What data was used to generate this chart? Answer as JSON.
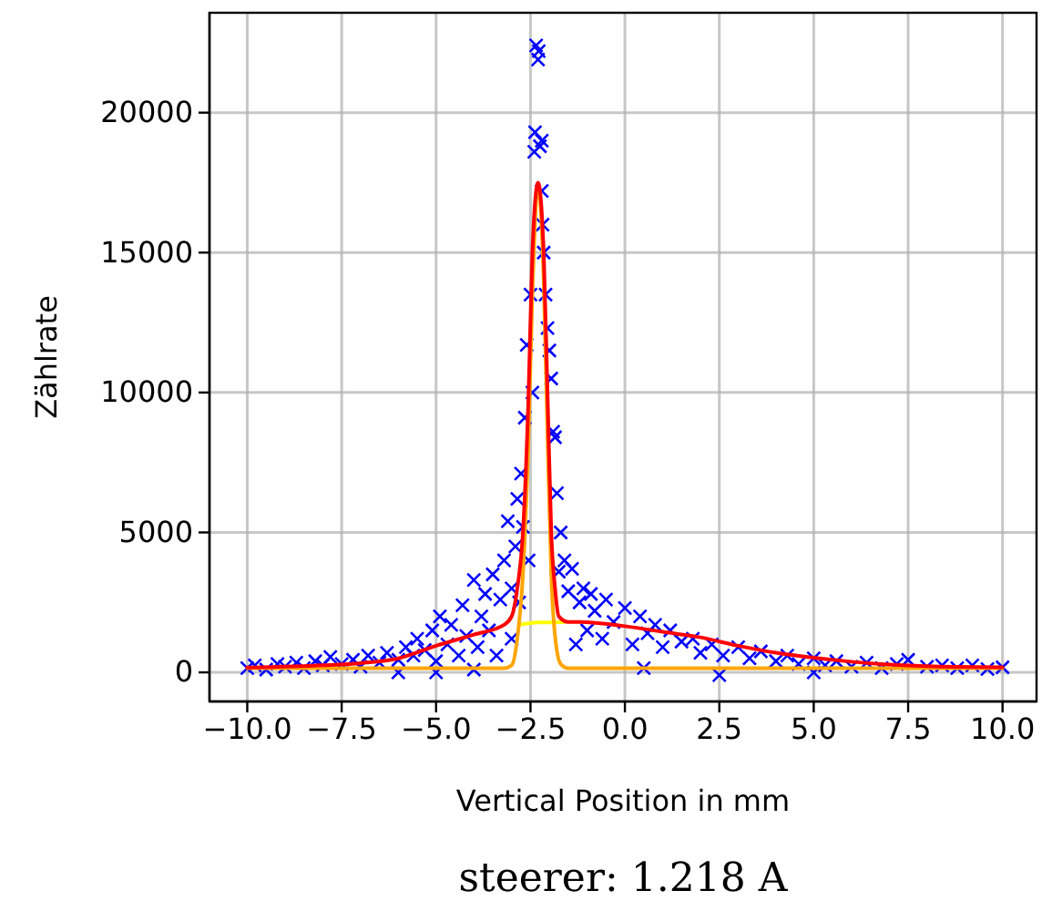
{
  "chart_data": {
    "type": "scatter",
    "title": "steerer: 1.218 A",
    "xlabel": "Vertical Position in mm",
    "ylabel": "Zählrate",
    "xlim": [
      -11,
      10.9
    ],
    "ylim": [
      -1040,
      23570
    ],
    "xticks": [
      {
        "value": -10,
        "label": "−10.0"
      },
      {
        "value": -7.5,
        "label": "−7.5"
      },
      {
        "value": -5,
        "label": "−5.0"
      },
      {
        "value": -2.5,
        "label": "−2.5"
      },
      {
        "value": 0,
        "label": "0.0"
      },
      {
        "value": 2.5,
        "label": "2.5"
      },
      {
        "value": 5,
        "label": "5.0"
      },
      {
        "value": 7.5,
        "label": "7.5"
      },
      {
        "value": 10,
        "label": "10.0"
      }
    ],
    "yticks": [
      0,
      5000,
      10000,
      15000,
      20000
    ],
    "grid": true,
    "marker": "cross",
    "series": [
      {
        "color": "#0000ff",
        "x": [
          -10,
          -9.8,
          -9.5,
          -9.2,
          -9,
          -8.7,
          -8.5,
          -8.2,
          -8,
          -7.8,
          -7.5,
          -7.2,
          -7,
          -6.8,
          -6.5,
          -6.3,
          -6,
          -6,
          -5.8,
          -5.6,
          -5.5,
          -5.3,
          -5.1,
          -5,
          -5,
          -4.9,
          -4.7,
          -4.6,
          -4.4,
          -4.3,
          -4.2,
          -4,
          -4,
          -3.9,
          -3.8,
          -3.7,
          -3.6,
          -3.5,
          -3.4,
          -3.3,
          -3.2,
          -3.1,
          -3,
          -3,
          -2.9,
          -2.85,
          -2.8,
          -2.75,
          -2.7,
          -2.65,
          -2.6,
          -2.55,
          -2.5,
          -2.45,
          -2.4,
          -2.38,
          -2.35,
          -2.3,
          -2.28,
          -2.25,
          -2.2,
          -2.2,
          -2.18,
          -2.15,
          -2.1,
          -2.05,
          -2,
          -1.95,
          -1.9,
          -1.85,
          -1.8,
          -1.75,
          -1.7,
          -1.6,
          -1.5,
          -1.4,
          -1.3,
          -1.2,
          -1.1,
          -1,
          -0.9,
          -0.8,
          -0.6,
          -0.5,
          -0.3,
          0,
          0.2,
          0.4,
          0.5,
          0.6,
          0.8,
          1,
          1.2,
          1.5,
          1.8,
          2,
          2.3,
          2.5,
          2.6,
          3,
          3.3,
          3.6,
          4,
          4.3,
          4.6,
          5,
          5,
          5.3,
          5.6,
          6,
          6.4,
          6.8,
          7.2,
          7.5,
          8,
          8.4,
          8.8,
          9.2,
          9.6,
          10
        ],
        "values": [
          150,
          250,
          100,
          300,
          200,
          350,
          150,
          400,
          250,
          550,
          300,
          450,
          200,
          600,
          350,
          700,
          450,
          0,
          900,
          600,
          1200,
          800,
          1500,
          400,
          0,
          2000,
          1000,
          1700,
          600,
          2400,
          1300,
          3300,
          100,
          900,
          2000,
          2800,
          1500,
          3500,
          600,
          2600,
          4000,
          5400,
          3000,
          1200,
          4500,
          6200,
          2500,
          7100,
          5200,
          9100,
          11700,
          4000,
          13500,
          10000,
          18600,
          19300,
          22400,
          21900,
          22200,
          18800,
          19000,
          17200,
          16000,
          15000,
          13500,
          12300,
          11500,
          10500,
          8600,
          8400,
          6400,
          3600,
          5000,
          4000,
          2900,
          3700,
          1000,
          2500,
          3000,
          1500,
          2800,
          2200,
          1200,
          2600,
          1800,
          2300,
          1000,
          2000,
          150,
          1400,
          1700,
          900,
          1500,
          1100,
          1200,
          700,
          1000,
          -100,
          600,
          900,
          500,
          750,
          400,
          600,
          300,
          500,
          0,
          250,
          400,
          200,
          350,
          150,
          300,
          450,
          200,
          250,
          150,
          250,
          120,
          180
        ]
      },
      {
        "type": "line",
        "marker": "none",
        "color": "#ffff00",
        "x": [
          -2.8,
          -2.3,
          -1.9,
          -1.6
        ],
        "values": [
          1700,
          1780,
          1790,
          1800
        ]
      },
      {
        "type": "line",
        "marker": "none",
        "color": "#ffa500",
        "x": [
          -10,
          -3.2,
          -3,
          -2.85,
          -2.7,
          -2.55,
          -2.45,
          -2.3,
          -2.15,
          -2.05,
          -1.95,
          -1.85,
          -1.7,
          -1.5,
          10
        ],
        "values": [
          150,
          150,
          250,
          1200,
          3500,
          8500,
          13500,
          17400,
          14000,
          8500,
          3500,
          1300,
          300,
          150,
          150
        ]
      },
      {
        "type": "line",
        "marker": "none",
        "color": "#ff0000",
        "x": [
          -10,
          -8,
          -7,
          -6,
          -5,
          -4,
          -3.2,
          -3,
          -2.85,
          -2.7,
          -2.55,
          -2.45,
          -2.3,
          -2.15,
          -2.05,
          -1.95,
          -1.85,
          -1.75,
          -1.5,
          -1.2,
          0,
          1,
          2,
          3,
          4,
          5,
          6,
          7,
          8,
          10
        ],
        "values": [
          170,
          250,
          330,
          500,
          950,
          1350,
          1700,
          2000,
          3000,
          5000,
          10000,
          15000,
          17500,
          15000,
          10000,
          5000,
          3000,
          2000,
          1800,
          1800,
          1650,
          1450,
          1250,
          950,
          700,
          520,
          380,
          280,
          220,
          180
        ]
      }
    ]
  }
}
